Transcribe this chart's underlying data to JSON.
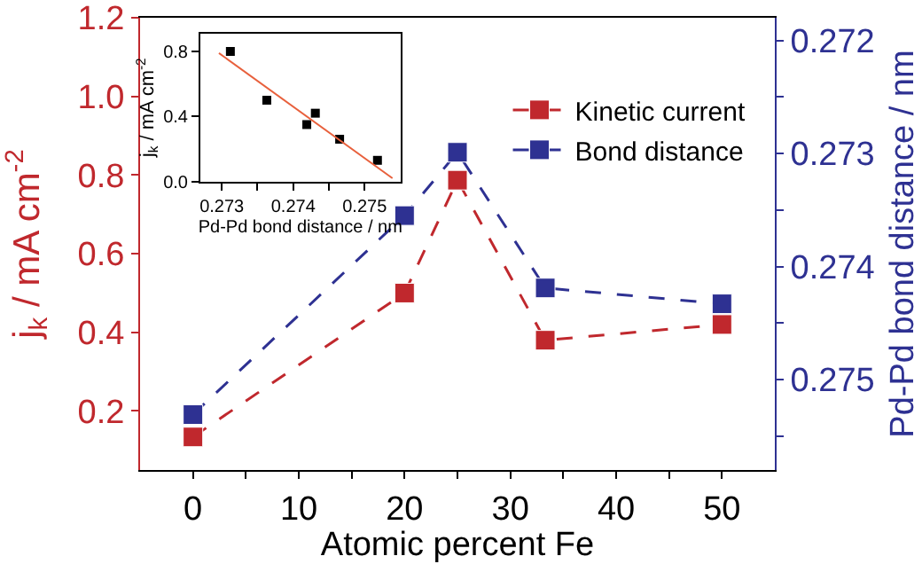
{
  "chart_data": [
    {
      "type": "line",
      "xlabel": "Atomic percent Fe",
      "ylabel": "j$_{k}$ / mA cm$^{-2}$",
      "y2label": "Pd-Pd bond distance / nm",
      "x": [
        0,
        20,
        25,
        33.3,
        50
      ],
      "series": [
        {
          "name": "Kinetic current",
          "color": "#c0282d",
          "values": [
            0.134,
            0.5,
            0.787,
            0.38,
            0.42
          ]
        },
        {
          "name": "Bond distance",
          "color": "#2e3192",
          "axis": "y2",
          "values": [
            0.27531,
            0.27355,
            0.27299,
            0.27419,
            0.27433
          ]
        }
      ],
      "xlim": [
        -5,
        55
      ],
      "xticks": [
        0,
        {
          "value": 5,
          "label": null
        },
        10,
        {
          "value": 15,
          "label": null
        },
        20,
        {
          "value": 25,
          "label": null
        },
        30,
        {
          "value": 35,
          "label": null
        },
        40,
        {
          "value": 45,
          "label": null
        },
        50
      ],
      "ylim": [
        0.05,
        1.2
      ],
      "yticks": [
        0.2,
        0.4,
        0.6,
        0.8,
        {
          "value": 1.0,
          "label": "1.0"
        },
        1.2
      ],
      "y2lim": [
        0.2758,
        0.2718
      ],
      "y2ticks": [
        0.272,
        {
          "value": 0.2725,
          "label": null
        },
        0.273,
        {
          "value": 0.2735,
          "label": null
        },
        0.274,
        {
          "value": 0.2745,
          "label": null
        },
        0.275,
        {
          "value": 0.2755,
          "label": null
        }
      ],
      "marker": "square",
      "line_style": "dashed",
      "legend": "top right"
    },
    {
      "type": "scatter",
      "xlabel": "Pd-Pd bond distance / nm",
      "ylabel": "j$_{k}$ / mA cm$^{-2}$",
      "x": [
        0.27312,
        0.27363,
        0.27419,
        0.27431,
        0.27465,
        0.27518
      ],
      "series": [
        {
          "color": "#000000",
          "values": [
            0.8,
            0.5,
            0.35,
            0.42,
            0.26,
            0.13
          ]
        },
        {
          "type": "line",
          "marker": "none",
          "color": "#e8603c",
          "x": [
            0.27296,
            0.27539
          ],
          "values": [
            0.79,
            0.02
          ]
        }
      ],
      "xlim": [
        0.2727,
        0.2755
      ],
      "xticks": [
        0.273,
        {
          "value": 0.2735,
          "label": null
        },
        0.274,
        {
          "value": 0.2745,
          "label": null
        },
        0.275
      ],
      "ylim": [
        0,
        0.91
      ],
      "yticks": [
        {
          "value": 0,
          "label": "0.0"
        },
        0.4,
        0.8
      ],
      "marker": "square",
      "legend": false
    }
  ]
}
